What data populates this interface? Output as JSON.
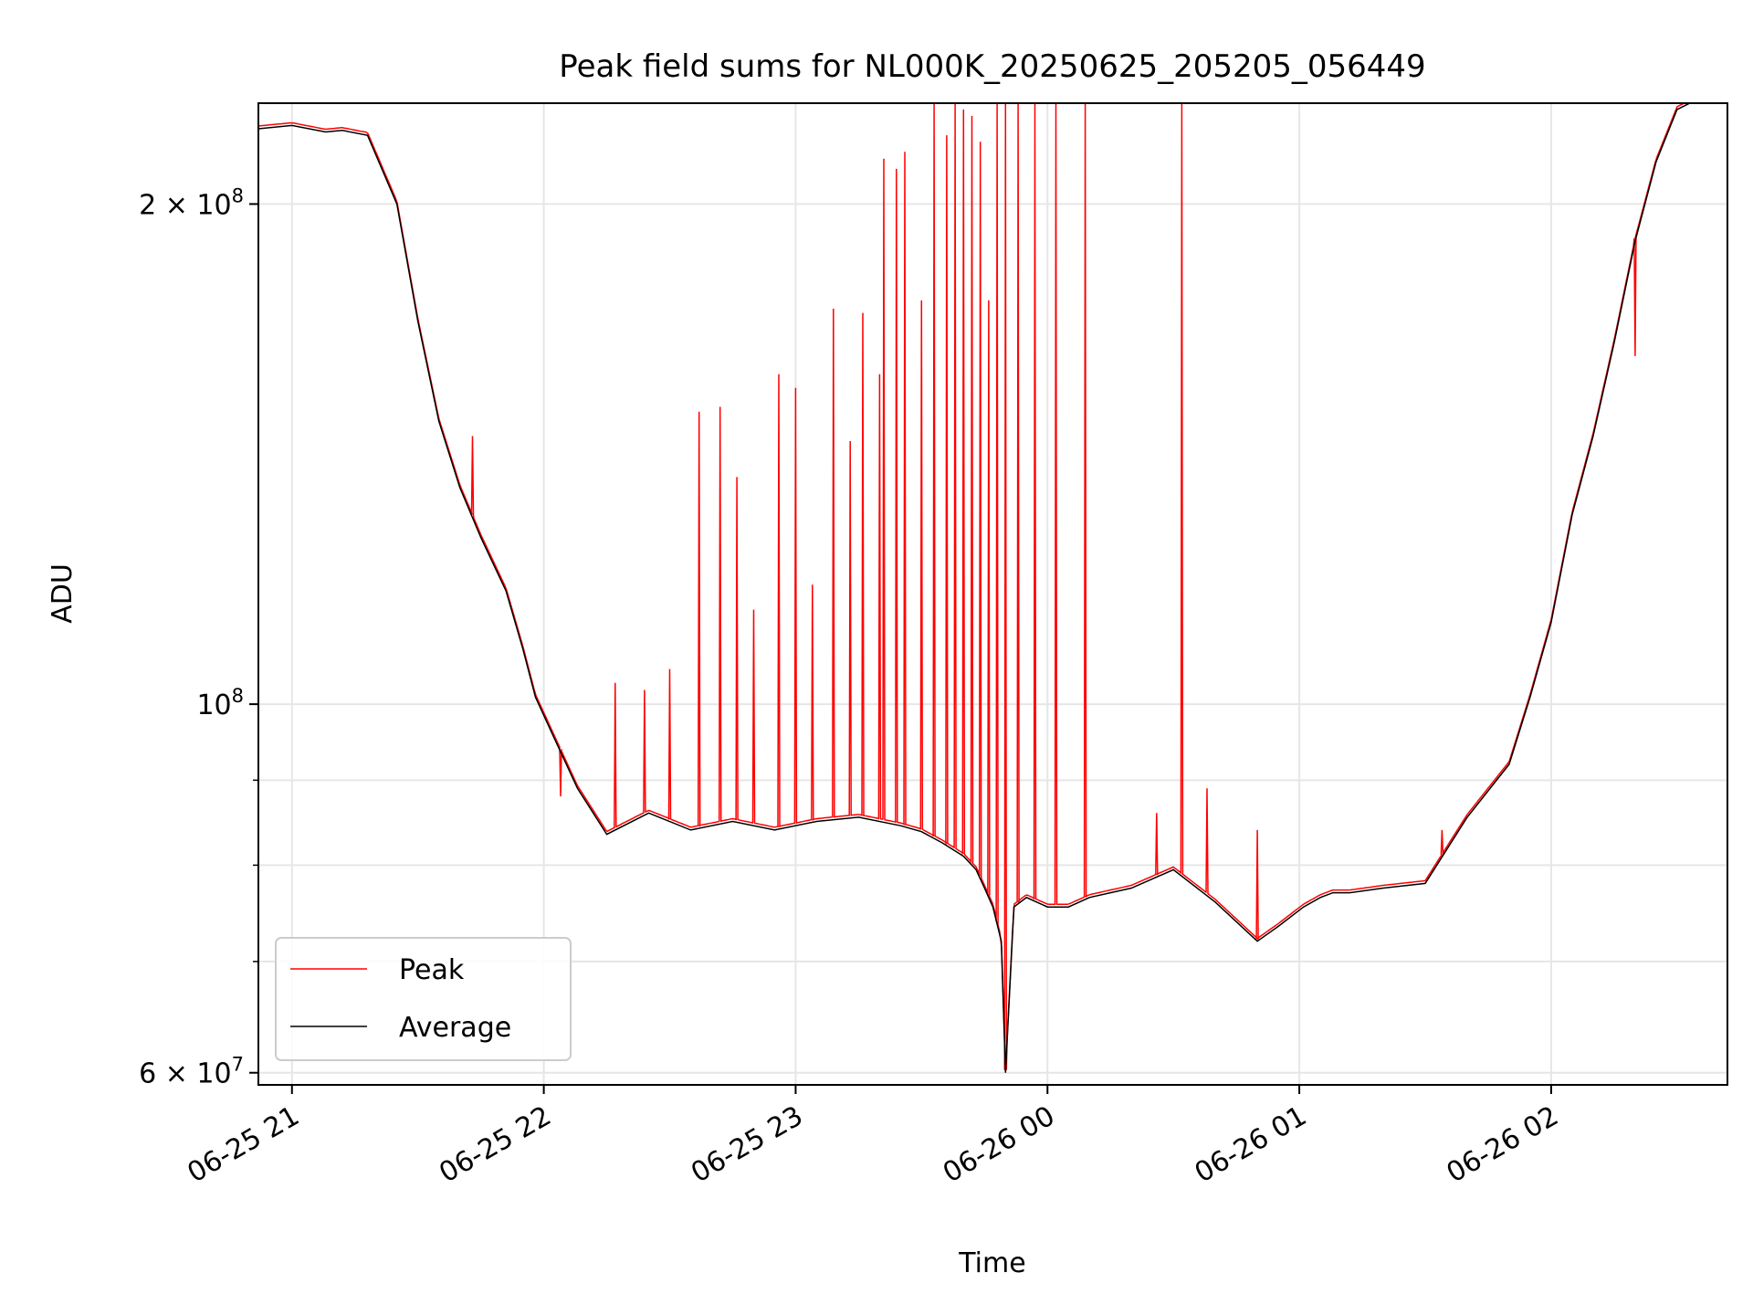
{
  "chart_data": {
    "type": "line",
    "title": "Peak field sums for NL000K_20250625_205205_056449",
    "xlabel": "Time",
    "ylabel": "ADU",
    "yscale": "log",
    "ylim": [
      59000000,
      230000000
    ],
    "xlim": [
      "2025-06-25 20:52",
      "2025-06-26 02:42"
    ],
    "x_ticks": [
      "06-25 21",
      "06-25 22",
      "06-25 23",
      "06-26 00",
      "06-26 01",
      "06-26 02"
    ],
    "y_major_ticks": [
      {
        "value": 60000000,
        "base": "6 × 10",
        "exp": "7"
      },
      {
        "value": 100000000,
        "base": "10",
        "exp": "8"
      },
      {
        "value": 200000000,
        "base": "2 × 10",
        "exp": "8"
      }
    ],
    "y_minor_ticks": [
      70000000,
      80000000,
      90000000
    ],
    "grid": true,
    "legend": {
      "position": "lower-left",
      "entries": [
        {
          "name": "Peak",
          "color": "#ff0000"
        },
        {
          "name": "Average",
          "color": "#000000"
        }
      ]
    },
    "series": [
      {
        "name": "Average",
        "color": "#000000",
        "x": [
          "2025-06-25 20:52",
          "2025-06-25 21:00",
          "2025-06-25 21:08",
          "2025-06-25 21:12",
          "2025-06-25 21:18",
          "2025-06-25 21:25",
          "2025-06-25 21:30",
          "2025-06-25 21:35",
          "2025-06-25 21:40",
          "2025-06-25 21:45",
          "2025-06-25 21:51",
          "2025-06-25 21:55",
          "2025-06-25 21:58",
          "2025-06-25 22:02",
          "2025-06-25 22:08",
          "2025-06-25 22:15",
          "2025-06-25 22:25",
          "2025-06-25 22:35",
          "2025-06-25 22:45",
          "2025-06-25 22:55",
          "2025-06-25 23:05",
          "2025-06-25 23:15",
          "2025-06-25 23:25",
          "2025-06-25 23:30",
          "2025-06-25 23:35",
          "2025-06-25 23:40",
          "2025-06-25 23:43",
          "2025-06-25 23:45",
          "2025-06-25 23:47",
          "2025-06-25 23:49",
          "2025-06-25 23:50",
          "2025-06-25 23:52",
          "2025-06-25 23:55",
          "2025-06-26 00:00",
          "2025-06-26 00:05",
          "2025-06-26 00:10",
          "2025-06-26 00:15",
          "2025-06-26 00:20",
          "2025-06-26 00:25",
          "2025-06-26 00:30",
          "2025-06-26 00:40",
          "2025-06-26 00:50",
          "2025-06-26 00:55",
          "2025-06-26 01:01",
          "2025-06-26 01:05",
          "2025-06-26 01:08",
          "2025-06-26 01:12",
          "2025-06-26 01:20",
          "2025-06-26 01:30",
          "2025-06-26 01:40",
          "2025-06-26 01:50",
          "2025-06-26 01:55",
          "2025-06-26 02:00",
          "2025-06-26 02:05",
          "2025-06-26 02:10",
          "2025-06-26 02:15",
          "2025-06-26 02:20",
          "2025-06-26 02:25",
          "2025-06-26 02:30",
          "2025-06-26 02:36",
          "2025-06-26 02:42"
        ],
        "y": [
          222000000,
          223000000,
          221000000,
          221500000,
          220000000,
          200000000,
          170000000,
          148000000,
          135000000,
          126000000,
          117000000,
          108000000,
          101000000,
          96000000,
          89000000,
          83500000,
          86000000,
          84000000,
          85000000,
          84000000,
          85000000,
          85500000,
          84500000,
          83800000,
          82500000,
          81000000,
          79500000,
          77500000,
          75500000,
          72000000,
          60000000,
          75500000,
          76500000,
          75500000,
          75500000,
          76500000,
          77000000,
          77500000,
          78500000,
          79500000,
          76000000,
          72000000,
          73500000,
          75500000,
          76500000,
          77000000,
          77000000,
          77500000,
          78000000,
          85500000,
          92000000,
          101000000,
          112000000,
          130000000,
          145000000,
          165000000,
          190000000,
          212000000,
          228000000,
          232000000,
          232000000
        ]
      },
      {
        "name": "Peak",
        "color": "#ff0000",
        "spikes": [
          {
            "x": "2025-06-25 21:43",
            "y": 145000000
          },
          {
            "x": "2025-06-25 22:04",
            "y": 88000000
          },
          {
            "x": "2025-06-25 22:17",
            "y": 103000000
          },
          {
            "x": "2025-06-25 22:24",
            "y": 102000000
          },
          {
            "x": "2025-06-25 22:30",
            "y": 105000000
          },
          {
            "x": "2025-06-25 22:37",
            "y": 150000000
          },
          {
            "x": "2025-06-25 22:42",
            "y": 151000000
          },
          {
            "x": "2025-06-25 22:46",
            "y": 137000000
          },
          {
            "x": "2025-06-25 22:50",
            "y": 114000000
          },
          {
            "x": "2025-06-25 22:56",
            "y": 158000000
          },
          {
            "x": "2025-06-25 23:00",
            "y": 155000000
          },
          {
            "x": "2025-06-25 23:04",
            "y": 118000000
          },
          {
            "x": "2025-06-25 23:09",
            "y": 173000000
          },
          {
            "x": "2025-06-25 23:13",
            "y": 144000000
          },
          {
            "x": "2025-06-25 23:16",
            "y": 172000000
          },
          {
            "x": "2025-06-25 23:20",
            "y": 158000000
          },
          {
            "x": "2025-06-25 23:21",
            "y": 213000000
          },
          {
            "x": "2025-06-25 23:24",
            "y": 210000000
          },
          {
            "x": "2025-06-25 23:26",
            "y": 215000000
          },
          {
            "x": "2025-06-25 23:30",
            "y": 175000000
          },
          {
            "x": "2025-06-25 23:33",
            "y": 230000000
          },
          {
            "x": "2025-06-25 23:36",
            "y": 220000000
          },
          {
            "x": "2025-06-25 23:38",
            "y": 230000000
          },
          {
            "x": "2025-06-25 23:40",
            "y": 228000000
          },
          {
            "x": "2025-06-25 23:42",
            "y": 226000000
          },
          {
            "x": "2025-06-25 23:44",
            "y": 218000000
          },
          {
            "x": "2025-06-25 23:46",
            "y": 175000000
          },
          {
            "x": "2025-06-25 23:48",
            "y": 230000000
          },
          {
            "x": "2025-06-25 23:50",
            "y": 230000000
          },
          {
            "x": "2025-06-25 23:53",
            "y": 230000000
          },
          {
            "x": "2025-06-25 23:57",
            "y": 230000000
          },
          {
            "x": "2025-06-26 00:02",
            "y": 230000000
          },
          {
            "x": "2025-06-26 00:09",
            "y": 230000000
          },
          {
            "x": "2025-06-26 00:26",
            "y": 86000000
          },
          {
            "x": "2025-06-26 00:32",
            "y": 230000000
          },
          {
            "x": "2025-06-26 00:38",
            "y": 89000000
          },
          {
            "x": "2025-06-26 00:50",
            "y": 84000000
          },
          {
            "x": "2025-06-26 01:34",
            "y": 84000000
          },
          {
            "x": "2025-06-26 02:20",
            "y": 162000000
          }
        ]
      }
    ]
  }
}
